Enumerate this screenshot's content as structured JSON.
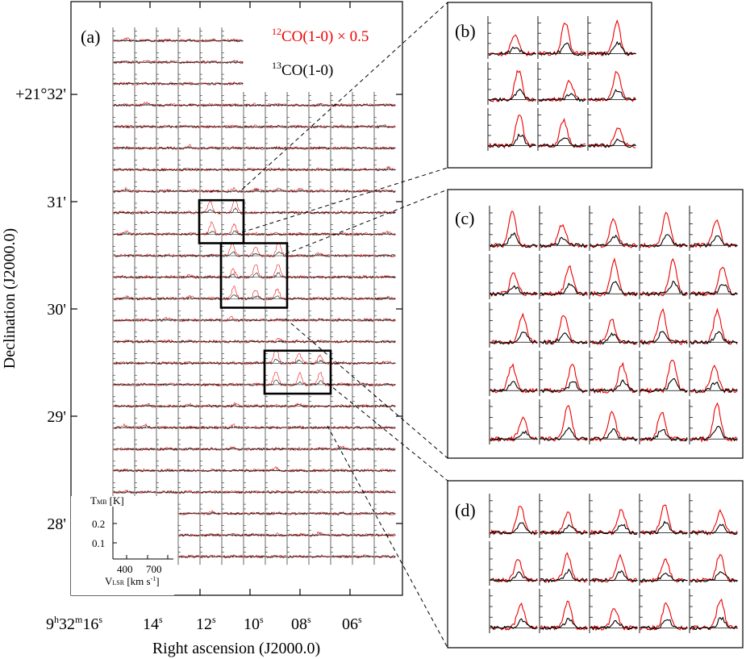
{
  "chart_data": [
    {
      "panel": "a",
      "type": "line",
      "panel_label": "(a)",
      "title": "",
      "xlabel": "Right ascension (J2000.0)",
      "ylabel": "Declination (J2000.0)",
      "x_ticks": [
        {
          "label": "9h32m16s",
          "h": "9",
          "m": "32",
          "s": "16"
        },
        {
          "label": "14s",
          "s": "14"
        },
        {
          "label": "12s",
          "s": "12"
        },
        {
          "label": "10s",
          "s": "10"
        },
        {
          "label": "08s",
          "s": "08"
        },
        {
          "label": "06s",
          "s": "06"
        }
      ],
      "y_ticks": [
        "+21°32'",
        "31'",
        "30'",
        "29'",
        "28'"
      ],
      "grid": {
        "columns": 13,
        "rows": 25
      },
      "series": [
        {
          "name": "12CO(1-0) × 0.5",
          "iso": "12",
          "mol": "CO(1-0) × 0.5",
          "color": "#ee0000"
        },
        {
          "name": "13CO(1-0)",
          "iso": "13",
          "mol": "CO(1-0)",
          "color": "#000000"
        }
      ],
      "scale_box": {
        "y_label_main": "T",
        "y_label_sub": "MB",
        "y_label_unit": " [K]",
        "y_ticks": [
          "0.2",
          "0.1"
        ],
        "x_ticks": [
          "400",
          "700"
        ],
        "x_label_main": "V",
        "x_label_sub": "LSR",
        "x_label_unit": " [km s",
        "x_label_exp": "-1",
        "x_label_close": "]"
      },
      "zoom_boxes": [
        {
          "target": "b",
          "cols": [
            4,
            5
          ],
          "rows": [
            8,
            9
          ]
        },
        {
          "target": "c",
          "cols": [
            5,
            7
          ],
          "rows": [
            10,
            12
          ]
        },
        {
          "target": "d",
          "cols": [
            7,
            9
          ],
          "rows": [
            15,
            16
          ]
        }
      ]
    },
    {
      "panel": "b",
      "type": "line",
      "panel_label": "(b)",
      "rows": 3,
      "cols": 3,
      "twelve_co_peak_K": 0.25,
      "thirteen_co_peak_K": 0.05
    },
    {
      "panel": "c",
      "type": "line",
      "panel_label": "(c)",
      "rows": 5,
      "cols": 5,
      "twelve_co_peak_K": 0.25,
      "thirteen_co_peak_K": 0.06
    },
    {
      "panel": "d",
      "type": "line",
      "panel_label": "(d)",
      "rows": 3,
      "cols": 5,
      "twelve_co_peak_K": 0.2,
      "thirteen_co_peak_K": 0.05
    }
  ]
}
